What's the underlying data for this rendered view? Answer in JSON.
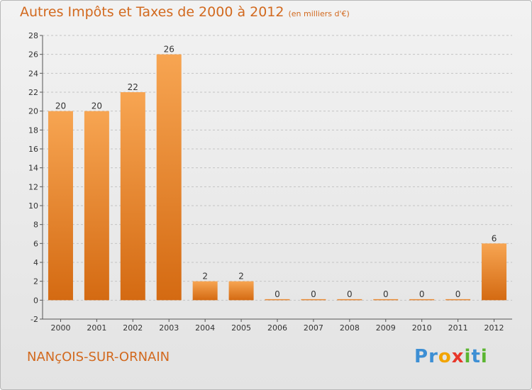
{
  "title": "Autres Impôts et Taxes de 2000 à 2012",
  "subtitle": "(en milliers d'€)",
  "commune": "NANçOIS-SUR-ORNAIN",
  "logo": {
    "letters": [
      {
        "char": "P",
        "color": "#3d8fd4"
      },
      {
        "char": "r",
        "color": "#3d8fd4"
      },
      {
        "char": "o",
        "color": "#f2a400"
      },
      {
        "char": "x",
        "color": "#e8372a"
      },
      {
        "char": "i",
        "color": "#5bb531"
      },
      {
        "char": "t",
        "color": "#3d8fd4"
      },
      {
        "char": "i",
        "color": "#5bb531"
      }
    ]
  },
  "chart_data": {
    "type": "bar",
    "categories": [
      "2000",
      "2001",
      "2002",
      "2003",
      "2004",
      "2005",
      "2006",
      "2007",
      "2008",
      "2009",
      "2010",
      "2011",
      "2012"
    ],
    "values": [
      20,
      20,
      22,
      26,
      2,
      2,
      0,
      0,
      0,
      0,
      0,
      0,
      6
    ],
    "data_labels": [
      "20",
      "20",
      "22",
      "26",
      "2",
      "2",
      "0",
      "0",
      "0",
      "0",
      "0",
      "0",
      "6"
    ],
    "ylim": [
      -2,
      28
    ],
    "yticks": [
      -2,
      0,
      2,
      4,
      6,
      8,
      10,
      12,
      14,
      16,
      18,
      20,
      22,
      24,
      26,
      28
    ],
    "grid": "horizontal dashed",
    "bar_color_light": "#f7a552",
    "bar_color_dark": "#d46a12"
  }
}
